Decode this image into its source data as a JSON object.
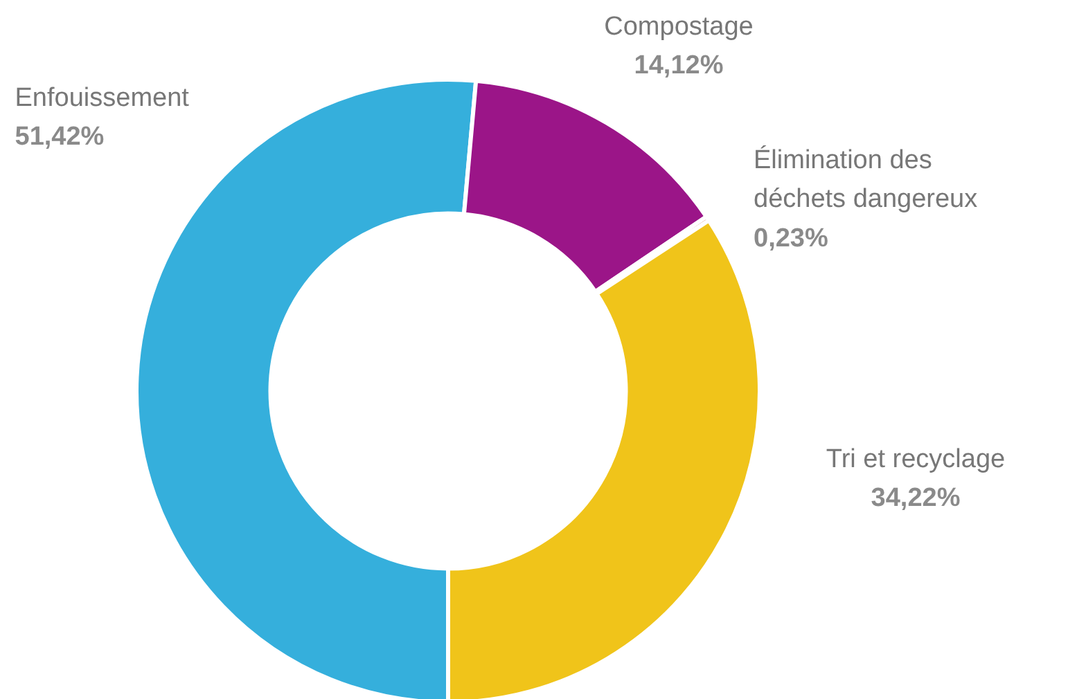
{
  "chart_data": {
    "type": "donut",
    "categories": [
      "Enfouissement",
      "Compostage",
      "Élimination des déchets dangereux",
      "Tri et recyclage"
    ],
    "values": [
      51.42,
      14.12,
      0.23,
      34.22
    ],
    "colors": [
      "#35afdc",
      "#9b1588",
      "#c8603c",
      "#f0c41a"
    ],
    "value_labels": [
      "51,42%",
      "14,12%",
      "0,23%",
      "34,22%"
    ]
  }
}
